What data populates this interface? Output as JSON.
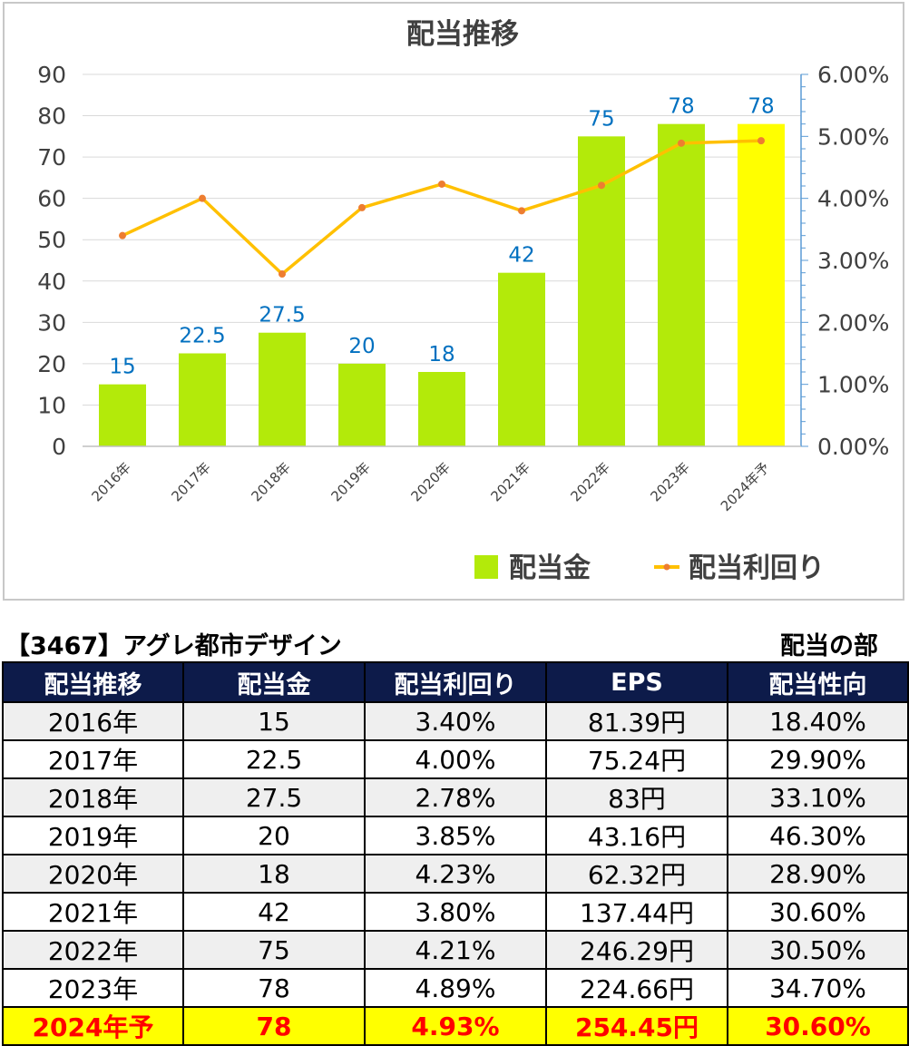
{
  "chart_data": {
    "type": "bar",
    "title": "配当推移",
    "categories": [
      "2016年",
      "2017年",
      "2018年",
      "2019年",
      "2020年",
      "2021年",
      "2022年",
      "2023年",
      "2024年予"
    ],
    "series": [
      {
        "name": "配当金",
        "type": "bar",
        "axis": "left",
        "values": [
          15,
          22.5,
          27.5,
          20,
          18,
          42,
          75,
          78,
          78
        ],
        "color": "#b3ea0a",
        "highlight_last_color": "#ffff00"
      },
      {
        "name": "配当利回り",
        "type": "line",
        "axis": "right",
        "values": [
          3.4,
          4.0,
          2.78,
          3.85,
          4.23,
          3.8,
          4.21,
          4.89,
          4.93
        ],
        "color": "#ffc000",
        "marker_color": "#ed7d31"
      }
    ],
    "data_labels": [
      "15",
      "22.5",
      "27.5",
      "20",
      "18",
      "42",
      "75",
      "78",
      "78"
    ],
    "ylim": [
      0,
      90
    ],
    "yticks": [
      "0",
      "10",
      "20",
      "30",
      "40",
      "50",
      "60",
      "70",
      "80",
      "90"
    ],
    "y2lim": [
      0,
      6
    ],
    "y2ticks": [
      "0.00%",
      "1.00%",
      "2.00%",
      "3.00%",
      "4.00%",
      "5.00%",
      "6.00%"
    ],
    "grid": true,
    "legend_placement": "bottom-right"
  },
  "table": {
    "company": "【3467】アグレ都市デザイン",
    "section": "配当の部",
    "headers": [
      "配当推移",
      "配当金",
      "配当利回り",
      "EPS",
      "配当性向"
    ],
    "rows": [
      [
        "2016年",
        "15",
        "3.40%",
        "81.39円",
        "18.40%"
      ],
      [
        "2017年",
        "22.5",
        "4.00%",
        "75.24円",
        "29.90%"
      ],
      [
        "2018年",
        "27.5",
        "2.78%",
        "83円",
        "33.10%"
      ],
      [
        "2019年",
        "20",
        "3.85%",
        "43.16円",
        "46.30%"
      ],
      [
        "2020年",
        "18",
        "4.23%",
        "62.32円",
        "28.90%"
      ],
      [
        "2021年",
        "42",
        "3.80%",
        "137.44円",
        "30.60%"
      ],
      [
        "2022年",
        "75",
        "4.21%",
        "246.29円",
        "30.50%"
      ],
      [
        "2023年",
        "78",
        "4.89%",
        "224.66円",
        "34.70%"
      ],
      [
        "2024年予",
        "78",
        "4.93%",
        "254.45円",
        "30.60%"
      ]
    ]
  },
  "colors": {
    "header_bg": "#0d1b4a",
    "forecast_bg": "#ffff00",
    "forecast_text": "#ff0000",
    "label_blue": "#0070c0"
  }
}
